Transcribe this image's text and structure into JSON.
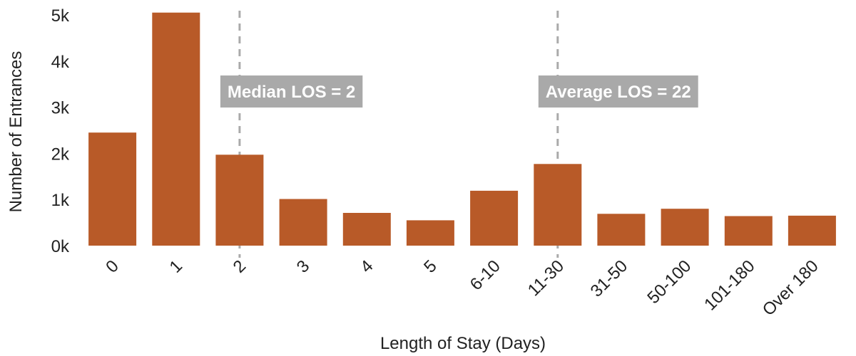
{
  "chart_data": {
    "type": "bar",
    "categories": [
      "0",
      "1",
      "2",
      "3",
      "4",
      "5",
      "6-10",
      "11-30",
      "31-50",
      "50-100",
      "101-180",
      "Over 180"
    ],
    "values": [
      2450,
      5050,
      1970,
      1010,
      710,
      550,
      1190,
      1770,
      690,
      800,
      640,
      650
    ],
    "xlabel": "Length of Stay (Days)",
    "ylabel": "Number of Entrances",
    "ylim": [
      0,
      5200
    ],
    "yticks": [
      0,
      1000,
      2000,
      3000,
      4000,
      5000
    ],
    "ytick_labels": [
      "0k",
      "1k",
      "2k",
      "3k",
      "4k",
      "5k"
    ],
    "grid": false,
    "annotations": [
      {
        "text": "Median LOS = 2",
        "category": "2"
      },
      {
        "text": "Average LOS = 22",
        "category": "11-30"
      }
    ],
    "colors": {
      "bar": "#b85a28",
      "reference_line": "#aaaaaa",
      "annotation_box": "#a9a9a9",
      "annotation_text": "#ffffff"
    }
  }
}
